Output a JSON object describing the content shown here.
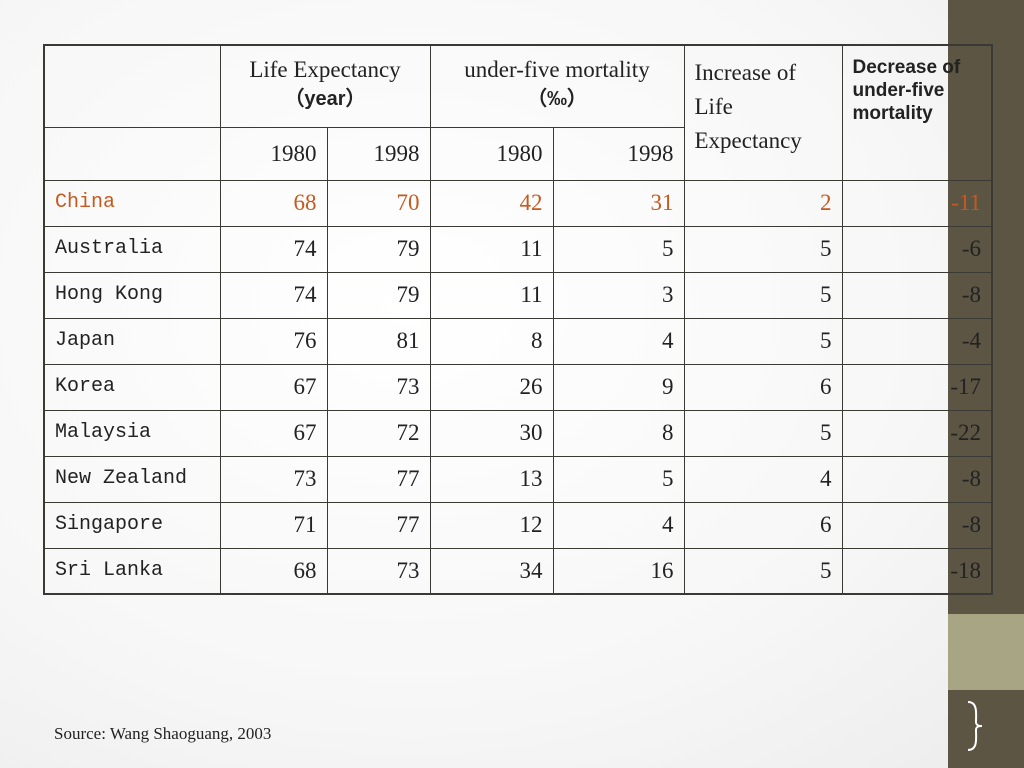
{
  "table": {
    "headers": {
      "life_expectancy": "Life Expectancy",
      "life_expectancy_unit": "（year）",
      "mortality": "under-five mortality",
      "mortality_unit": "（‰）",
      "increase": "Increase of Life Expectancy",
      "decrease": "Decrease of under-five mortality",
      "years": [
        "1980",
        "1998",
        "1980",
        "1998"
      ]
    },
    "rows": [
      {
        "country": "China",
        "le1980": "68",
        "le1998": "70",
        "m1980": "42",
        "m1998": "31",
        "inc": "2",
        "dec": "-11"
      },
      {
        "country": "Australia",
        "le1980": "74",
        "le1998": "79",
        "m1980": "11",
        "m1998": "5",
        "inc": "5",
        "dec": "-6"
      },
      {
        "country": "Hong Kong",
        "le1980": "74",
        "le1998": "79",
        "m1980": "11",
        "m1998": "3",
        "inc": "5",
        "dec": "-8"
      },
      {
        "country": "Japan",
        "le1980": "76",
        "le1998": "81",
        "m1980": "8",
        "m1998": "4",
        "inc": "5",
        "dec": "-4"
      },
      {
        "country": "Korea",
        "le1980": "67",
        "le1998": "73",
        "m1980": "26",
        "m1998": "9",
        "inc": "6",
        "dec": "-17"
      },
      {
        "country": "Malaysia",
        "le1980": "67",
        "le1998": "72",
        "m1980": "30",
        "m1998": "8",
        "inc": "5",
        "dec": "-22"
      },
      {
        "country": "New Zealand",
        "le1980": "73",
        "le1998": "77",
        "m1980": "13",
        "m1998": "5",
        "inc": "4",
        "dec": "-8"
      },
      {
        "country": "Singapore",
        "le1980": "71",
        "le1998": "77",
        "m1980": "12",
        "m1998": "4",
        "inc": "6",
        "dec": "-8"
      },
      {
        "country": "Sri Lanka",
        "le1980": "68",
        "le1998": "73",
        "m1980": "34",
        "m1998": "16",
        "inc": "5",
        "dec": "-18"
      }
    ]
  },
  "source": "Source: Wang Shaoguang, 2003",
  "colors": {
    "highlight": "#c65a1e",
    "sidebar": "#5c5543",
    "sidebar_light": "#a8a585"
  }
}
